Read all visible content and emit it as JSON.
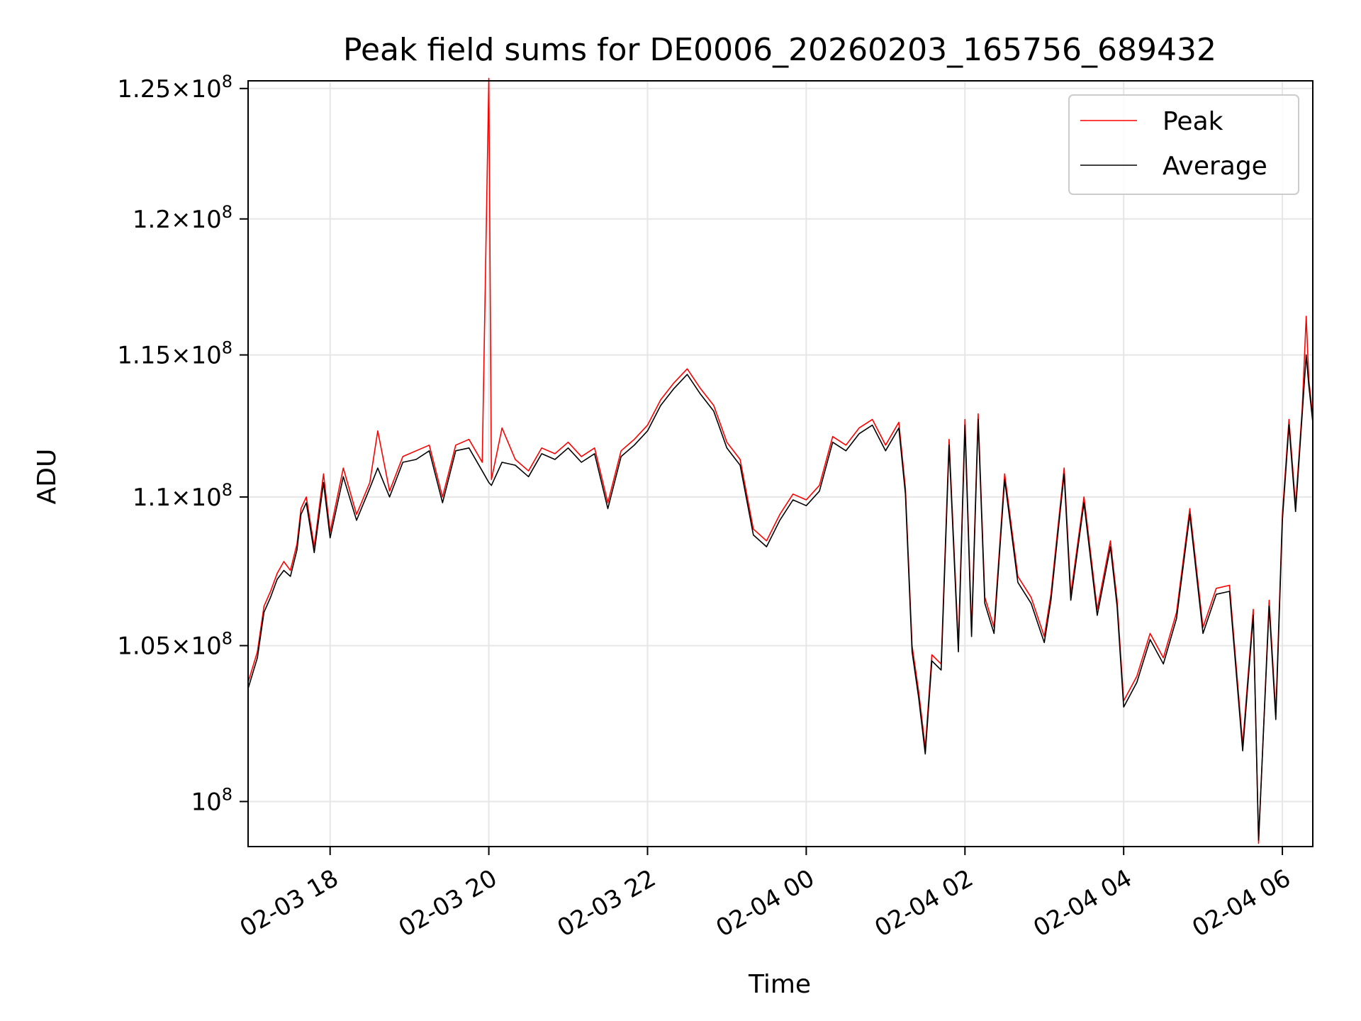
{
  "chart_data": {
    "type": "line",
    "title": "Peak field sums for DE0006_20260203_165756_689432",
    "xlabel": "Time",
    "ylabel": "ADU",
    "yscale": "log",
    "grid": true,
    "legend_position": "top-right",
    "xlim": [
      "2026-02-03 16:58",
      "2026-02-04 06:23"
    ],
    "ylim": [
      98600000,
      125300000
    ],
    "x_ticks": [
      {
        "value": "2026-02-03 18:00",
        "label": "02-03 18"
      },
      {
        "value": "2026-02-03 20:00",
        "label": "02-03 20"
      },
      {
        "value": "2026-02-03 22:00",
        "label": "02-03 22"
      },
      {
        "value": "2026-02-04 00:00",
        "label": "02-04 00"
      },
      {
        "value": "2026-02-04 02:00",
        "label": "02-04 02"
      },
      {
        "value": "2026-02-04 04:00",
        "label": "02-04 04"
      },
      {
        "value": "2026-02-04 06:00",
        "label": "02-04 06"
      }
    ],
    "y_ticks": [
      {
        "value": 100000000,
        "mantissa": "",
        "exp": "8"
      },
      {
        "value": 105000000,
        "mantissa": "1.05",
        "exp": "8"
      },
      {
        "value": 110000000,
        "mantissa": "1.1",
        "exp": "8"
      },
      {
        "value": 115000000,
        "mantissa": "1.15",
        "exp": "8"
      },
      {
        "value": 120000000,
        "mantissa": "1.2",
        "exp": "8"
      },
      {
        "value": 125000000,
        "mantissa": "1.25",
        "exp": "8"
      }
    ],
    "series": [
      {
        "name": "Peak",
        "color": "#ff0000",
        "points": [
          [
            "2026-02-03 16:58",
            103800000
          ],
          [
            "2026-02-03 17:05",
            104800000
          ],
          [
            "2026-02-03 17:10",
            106300000
          ],
          [
            "2026-02-03 17:15",
            106800000
          ],
          [
            "2026-02-03 17:20",
            107400000
          ],
          [
            "2026-02-03 17:25",
            107800000
          ],
          [
            "2026-02-03 17:30",
            107500000
          ],
          [
            "2026-02-03 17:35",
            108400000
          ],
          [
            "2026-02-03 17:38",
            109600000
          ],
          [
            "2026-02-03 17:42",
            110000000
          ],
          [
            "2026-02-03 17:48",
            108300000
          ],
          [
            "2026-02-03 17:55",
            110800000
          ],
          [
            "2026-02-03 18:00",
            108800000
          ],
          [
            "2026-02-03 18:10",
            111000000
          ],
          [
            "2026-02-03 18:20",
            109400000
          ],
          [
            "2026-02-03 18:30",
            110500000
          ],
          [
            "2026-02-03 18:36",
            112300000
          ],
          [
            "2026-02-03 18:45",
            110200000
          ],
          [
            "2026-02-03 18:55",
            111400000
          ],
          [
            "2026-02-03 19:05",
            111600000
          ],
          [
            "2026-02-03 19:15",
            111800000
          ],
          [
            "2026-02-03 19:25",
            110000000
          ],
          [
            "2026-02-03 19:35",
            111800000
          ],
          [
            "2026-02-03 19:45",
            112000000
          ],
          [
            "2026-02-03 19:55",
            111200000
          ],
          [
            "2026-02-03 20:00",
            125400000
          ],
          [
            "2026-02-03 20:02",
            110600000
          ],
          [
            "2026-02-03 20:10",
            112400000
          ],
          [
            "2026-02-03 20:20",
            111300000
          ],
          [
            "2026-02-03 20:30",
            110900000
          ],
          [
            "2026-02-03 20:40",
            111700000
          ],
          [
            "2026-02-03 20:50",
            111500000
          ],
          [
            "2026-02-03 21:00",
            111900000
          ],
          [
            "2026-02-03 21:10",
            111400000
          ],
          [
            "2026-02-03 21:20",
            111700000
          ],
          [
            "2026-02-03 21:30",
            109800000
          ],
          [
            "2026-02-03 21:40",
            111600000
          ],
          [
            "2026-02-03 21:50",
            112000000
          ],
          [
            "2026-02-03 22:00",
            112500000
          ],
          [
            "2026-02-03 22:10",
            113400000
          ],
          [
            "2026-02-03 22:20",
            114000000
          ],
          [
            "2026-02-03 22:30",
            114500000
          ],
          [
            "2026-02-03 22:40",
            113800000
          ],
          [
            "2026-02-03 22:50",
            113200000
          ],
          [
            "2026-02-03 23:00",
            111900000
          ],
          [
            "2026-02-03 23:10",
            111300000
          ],
          [
            "2026-02-03 23:20",
            108900000
          ],
          [
            "2026-02-03 23:30",
            108500000
          ],
          [
            "2026-02-03 23:40",
            109400000
          ],
          [
            "2026-02-03 23:50",
            110100000
          ],
          [
            "2026-02-04 00:00",
            109900000
          ],
          [
            "2026-02-04 00:10",
            110400000
          ],
          [
            "2026-02-04 00:20",
            112100000
          ],
          [
            "2026-02-04 00:30",
            111800000
          ],
          [
            "2026-02-04 00:40",
            112400000
          ],
          [
            "2026-02-04 00:50",
            112700000
          ],
          [
            "2026-02-04 01:00",
            111800000
          ],
          [
            "2026-02-04 01:10",
            112600000
          ],
          [
            "2026-02-04 01:15",
            110300000
          ],
          [
            "2026-02-04 01:20",
            105000000
          ],
          [
            "2026-02-04 01:25",
            103500000
          ],
          [
            "2026-02-04 01:30",
            101700000
          ],
          [
            "2026-02-04 01:35",
            104700000
          ],
          [
            "2026-02-04 01:42",
            104400000
          ],
          [
            "2026-02-04 01:48",
            112000000
          ],
          [
            "2026-02-04 01:55",
            105000000
          ],
          [
            "2026-02-04 02:00",
            112700000
          ],
          [
            "2026-02-04 02:05",
            105500000
          ],
          [
            "2026-02-04 02:10",
            112900000
          ],
          [
            "2026-02-04 02:15",
            106600000
          ],
          [
            "2026-02-04 02:22",
            105600000
          ],
          [
            "2026-02-04 02:30",
            110800000
          ],
          [
            "2026-02-04 02:40",
            107300000
          ],
          [
            "2026-02-04 02:50",
            106600000
          ],
          [
            "2026-02-04 03:00",
            105300000
          ],
          [
            "2026-02-04 03:05",
            106700000
          ],
          [
            "2026-02-04 03:15",
            111000000
          ],
          [
            "2026-02-04 03:20",
            106700000
          ],
          [
            "2026-02-04 03:30",
            110000000
          ],
          [
            "2026-02-04 03:40",
            106200000
          ],
          [
            "2026-02-04 03:50",
            108500000
          ],
          [
            "2026-02-04 03:55",
            106500000
          ],
          [
            "2026-02-04 04:00",
            103200000
          ],
          [
            "2026-02-04 04:10",
            104000000
          ],
          [
            "2026-02-04 04:20",
            105400000
          ],
          [
            "2026-02-04 04:30",
            104600000
          ],
          [
            "2026-02-04 04:40",
            106100000
          ],
          [
            "2026-02-04 04:50",
            109600000
          ],
          [
            "2026-02-04 05:00",
            105600000
          ],
          [
            "2026-02-04 05:10",
            106900000
          ],
          [
            "2026-02-04 05:20",
            107000000
          ],
          [
            "2026-02-04 05:30",
            101800000
          ],
          [
            "2026-02-04 05:38",
            106200000
          ],
          [
            "2026-02-04 05:42",
            98700000
          ],
          [
            "2026-02-04 05:50",
            106500000
          ],
          [
            "2026-02-04 05:55",
            102800000
          ],
          [
            "2026-02-04 06:00",
            109400000
          ],
          [
            "2026-02-04 06:05",
            112700000
          ],
          [
            "2026-02-04 06:10",
            109700000
          ],
          [
            "2026-02-04 06:15",
            113100000
          ],
          [
            "2026-02-04 06:18",
            116400000
          ],
          [
            "2026-02-04 06:20",
            114100000
          ],
          [
            "2026-02-04 06:23",
            112800000
          ]
        ]
      },
      {
        "name": "Average",
        "color": "#000000",
        "points": [
          [
            "2026-02-03 16:58",
            103600000
          ],
          [
            "2026-02-03 17:05",
            104600000
          ],
          [
            "2026-02-03 17:10",
            106100000
          ],
          [
            "2026-02-03 17:15",
            106600000
          ],
          [
            "2026-02-03 17:20",
            107200000
          ],
          [
            "2026-02-03 17:25",
            107500000
          ],
          [
            "2026-02-03 17:30",
            107300000
          ],
          [
            "2026-02-03 17:35",
            108200000
          ],
          [
            "2026-02-03 17:38",
            109400000
          ],
          [
            "2026-02-03 17:42",
            109800000
          ],
          [
            "2026-02-03 17:48",
            108100000
          ],
          [
            "2026-02-03 17:55",
            110500000
          ],
          [
            "2026-02-03 18:00",
            108600000
          ],
          [
            "2026-02-03 18:10",
            110700000
          ],
          [
            "2026-02-03 18:20",
            109200000
          ],
          [
            "2026-02-03 18:30",
            110300000
          ],
          [
            "2026-02-03 18:36",
            111000000
          ],
          [
            "2026-02-03 18:45",
            110000000
          ],
          [
            "2026-02-03 18:55",
            111200000
          ],
          [
            "2026-02-03 19:05",
            111300000
          ],
          [
            "2026-02-03 19:15",
            111600000
          ],
          [
            "2026-02-03 19:25",
            109800000
          ],
          [
            "2026-02-03 19:35",
            111600000
          ],
          [
            "2026-02-03 19:45",
            111700000
          ],
          [
            "2026-02-03 19:55",
            110900000
          ],
          [
            "2026-02-03 20:00",
            110500000
          ],
          [
            "2026-02-03 20:02",
            110400000
          ],
          [
            "2026-02-03 20:10",
            111200000
          ],
          [
            "2026-02-03 20:20",
            111100000
          ],
          [
            "2026-02-03 20:30",
            110700000
          ],
          [
            "2026-02-03 20:40",
            111500000
          ],
          [
            "2026-02-03 20:50",
            111300000
          ],
          [
            "2026-02-03 21:00",
            111700000
          ],
          [
            "2026-02-03 21:10",
            111200000
          ],
          [
            "2026-02-03 21:20",
            111500000
          ],
          [
            "2026-02-03 21:30",
            109600000
          ],
          [
            "2026-02-03 21:40",
            111400000
          ],
          [
            "2026-02-03 21:50",
            111800000
          ],
          [
            "2026-02-03 22:00",
            112300000
          ],
          [
            "2026-02-03 22:10",
            113200000
          ],
          [
            "2026-02-03 22:20",
            113800000
          ],
          [
            "2026-02-03 22:30",
            114300000
          ],
          [
            "2026-02-03 22:40",
            113600000
          ],
          [
            "2026-02-03 22:50",
            113000000
          ],
          [
            "2026-02-03 23:00",
            111700000
          ],
          [
            "2026-02-03 23:10",
            111100000
          ],
          [
            "2026-02-03 23:20",
            108700000
          ],
          [
            "2026-02-03 23:30",
            108300000
          ],
          [
            "2026-02-03 23:40",
            109200000
          ],
          [
            "2026-02-03 23:50",
            109900000
          ],
          [
            "2026-02-04 00:00",
            109700000
          ],
          [
            "2026-02-04 00:10",
            110200000
          ],
          [
            "2026-02-04 00:20",
            111900000
          ],
          [
            "2026-02-04 00:30",
            111600000
          ],
          [
            "2026-02-04 00:40",
            112200000
          ],
          [
            "2026-02-04 00:50",
            112500000
          ],
          [
            "2026-02-04 01:00",
            111600000
          ],
          [
            "2026-02-04 01:10",
            112400000
          ],
          [
            "2026-02-04 01:15",
            110100000
          ],
          [
            "2026-02-04 01:20",
            104800000
          ],
          [
            "2026-02-04 01:25",
            103300000
          ],
          [
            "2026-02-04 01:30",
            101500000
          ],
          [
            "2026-02-04 01:35",
            104500000
          ],
          [
            "2026-02-04 01:42",
            104200000
          ],
          [
            "2026-02-04 01:48",
            111800000
          ],
          [
            "2026-02-04 01:55",
            104800000
          ],
          [
            "2026-02-04 02:00",
            112500000
          ],
          [
            "2026-02-04 02:05",
            105300000
          ],
          [
            "2026-02-04 02:10",
            112700000
          ],
          [
            "2026-02-04 02:15",
            106400000
          ],
          [
            "2026-02-04 02:22",
            105400000
          ],
          [
            "2026-02-04 02:30",
            110600000
          ],
          [
            "2026-02-04 02:40",
            107100000
          ],
          [
            "2026-02-04 02:50",
            106400000
          ],
          [
            "2026-02-04 03:00",
            105100000
          ],
          [
            "2026-02-04 03:05",
            106500000
          ],
          [
            "2026-02-04 03:15",
            110800000
          ],
          [
            "2026-02-04 03:20",
            106500000
          ],
          [
            "2026-02-04 03:30",
            109800000
          ],
          [
            "2026-02-04 03:40",
            106000000
          ],
          [
            "2026-02-04 03:50",
            108300000
          ],
          [
            "2026-02-04 03:55",
            106300000
          ],
          [
            "2026-02-04 04:00",
            103000000
          ],
          [
            "2026-02-04 04:10",
            103800000
          ],
          [
            "2026-02-04 04:20",
            105200000
          ],
          [
            "2026-02-04 04:30",
            104400000
          ],
          [
            "2026-02-04 04:40",
            105900000
          ],
          [
            "2026-02-04 04:50",
            109400000
          ],
          [
            "2026-02-04 05:00",
            105400000
          ],
          [
            "2026-02-04 05:10",
            106700000
          ],
          [
            "2026-02-04 05:20",
            106800000
          ],
          [
            "2026-02-04 05:30",
            101600000
          ],
          [
            "2026-02-04 05:38",
            106000000
          ],
          [
            "2026-02-04 05:42",
            98800000
          ],
          [
            "2026-02-04 05:50",
            106300000
          ],
          [
            "2026-02-04 05:55",
            102600000
          ],
          [
            "2026-02-04 06:00",
            109200000
          ],
          [
            "2026-02-04 06:05",
            112500000
          ],
          [
            "2026-02-04 06:10",
            109500000
          ],
          [
            "2026-02-04 06:15",
            112900000
          ],
          [
            "2026-02-04 06:18",
            115000000
          ],
          [
            "2026-02-04 06:20",
            113900000
          ],
          [
            "2026-02-04 06:23",
            112600000
          ]
        ]
      }
    ],
    "legend": [
      {
        "label": "Peak",
        "color": "#ff0000"
      },
      {
        "label": "Average",
        "color": "#000000"
      }
    ],
    "colors": {
      "grid": "#e6e6e6",
      "axes": "#000000",
      "legend_border": "#cccccc"
    }
  }
}
